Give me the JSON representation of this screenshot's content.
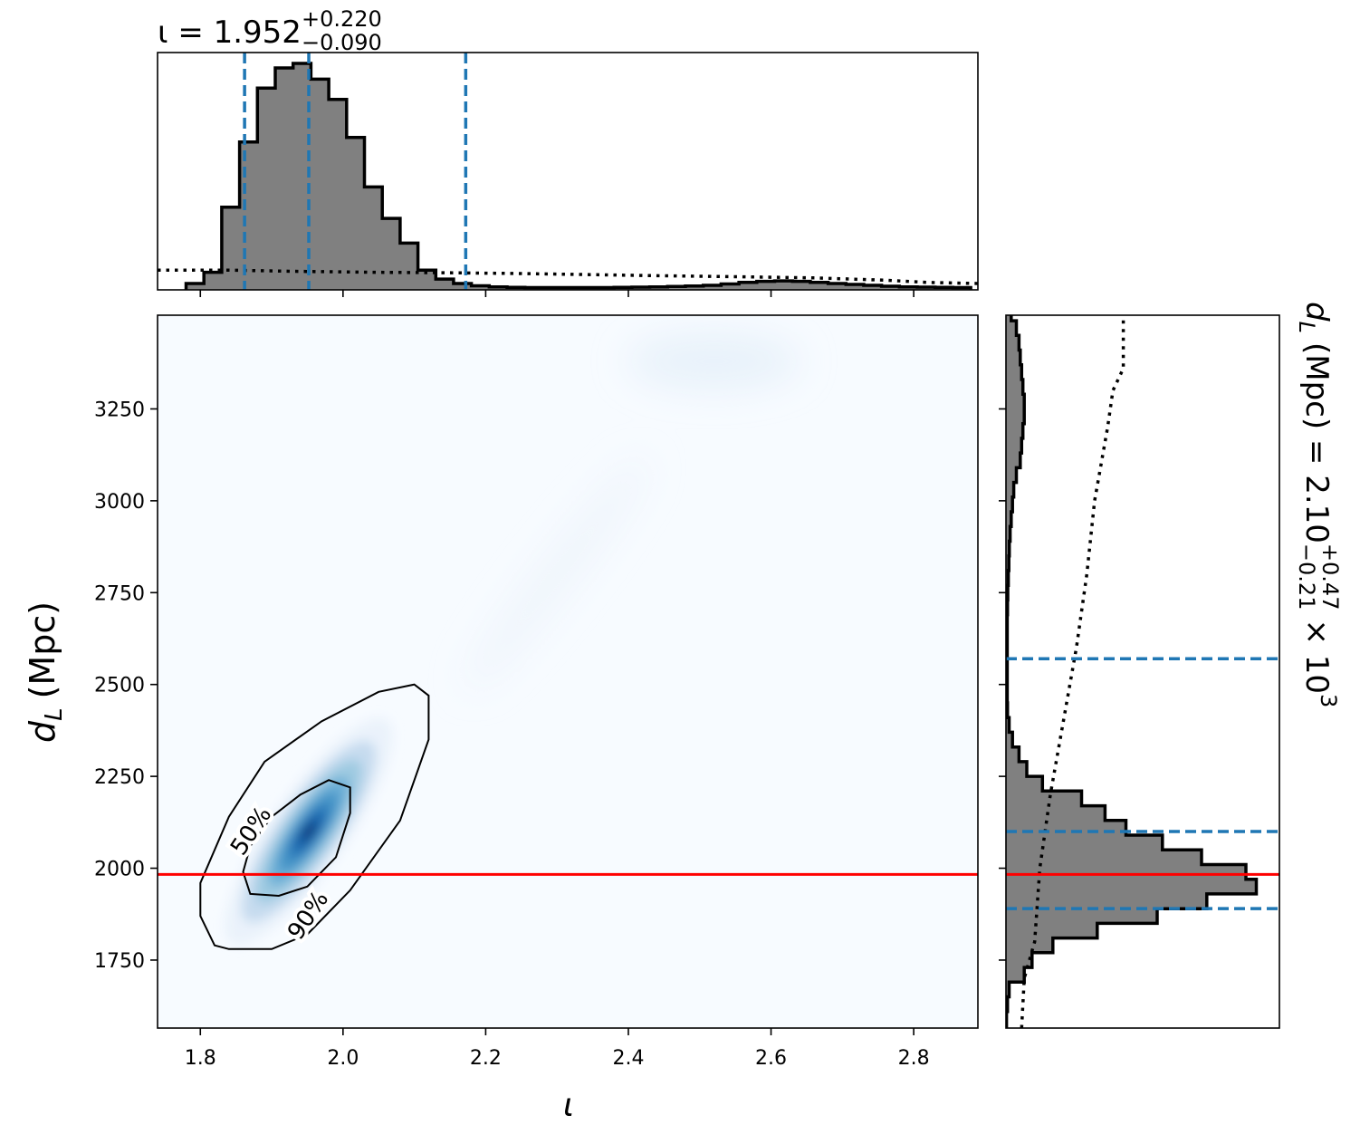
{
  "chart_data": [
    {
      "type": "heatmap",
      "panel": "joint",
      "xlabel": "ι",
      "ylabel_main": "d",
      "ylabel_sub": "L",
      "ylabel_unit": "(Mpc)",
      "xlim": [
        1.74,
        2.89
      ],
      "ylim": [
        1565,
        3505
      ],
      "x_ticks": [
        1.8,
        2.0,
        2.2,
        2.4,
        2.6,
        2.8
      ],
      "x_tick_labels": [
        "1.8",
        "2.0",
        "2.2",
        "2.4",
        "2.6",
        "2.8"
      ],
      "y_ticks": [
        1750,
        2000,
        2250,
        2500,
        2750,
        3000,
        3250
      ],
      "y_tick_labels": [
        "1750",
        "2000",
        "2250",
        "2500",
        "2750",
        "3000",
        "3250"
      ],
      "density_peak": {
        "x": 1.952,
        "y": 2100
      },
      "secondary_mode": {
        "x": 2.52,
        "y": 3380
      },
      "contours": [
        {
          "label": "50%",
          "points": [
            [
              1.87,
              1930
            ],
            [
              1.91,
              1925
            ],
            [
              1.95,
              1950
            ],
            [
              1.99,
              2030
            ],
            [
              2.01,
              2150
            ],
            [
              2.01,
              2220
            ],
            [
              1.98,
              2240
            ],
            [
              1.94,
              2200
            ],
            [
              1.9,
              2140
            ],
            [
              1.87,
              2060
            ],
            [
              1.86,
              1990
            ]
          ]
        },
        {
          "label": "90%",
          "points": [
            [
              1.82,
              1790
            ],
            [
              1.84,
              1780
            ],
            [
              1.9,
              1780
            ],
            [
              1.95,
              1820
            ],
            [
              2.01,
              1940
            ],
            [
              2.08,
              2130
            ],
            [
              2.12,
              2350
            ],
            [
              2.12,
              2470
            ],
            [
              2.1,
              2500
            ],
            [
              2.05,
              2480
            ],
            [
              1.97,
              2400
            ],
            [
              1.89,
              2290
            ],
            [
              1.84,
              2140
            ],
            [
              1.8,
              1960
            ],
            [
              1.8,
              1870
            ]
          ]
        }
      ],
      "truth_line": {
        "y": 1983,
        "color": "#ff0000"
      },
      "cmap": "Blues"
    },
    {
      "type": "bar",
      "panel": "marginal-x",
      "title_prefix": "ι = 1.952",
      "title_sup": "+0.220",
      "title_sub": "−0.090",
      "xlim": [
        1.74,
        2.89
      ],
      "bin_edges_start": 1.78,
      "bin_width": 0.025,
      "values": [
        0.02,
        0.07,
        0.36,
        0.65,
        0.89,
        0.98,
        1.0,
        0.93,
        0.84,
        0.67,
        0.45,
        0.31,
        0.2,
        0.08,
        0.04,
        0.02,
        0.01,
        0.005,
        0.003,
        0.002,
        0.002,
        0.002,
        0.002,
        0.002,
        0.003,
        0.004,
        0.005,
        0.007,
        0.009,
        0.012,
        0.018,
        0.025,
        0.03,
        0.032,
        0.03,
        0.025,
        0.02,
        0.016,
        0.012,
        0.008,
        0.005,
        0.004,
        0.003,
        0.002
      ],
      "prior_x": [
        1.74,
        1.84,
        1.92,
        2.04,
        2.14,
        2.24,
        2.34,
        2.44,
        2.56,
        2.66,
        2.76,
        2.82,
        2.89
      ],
      "prior_y": [
        0.08,
        0.08,
        0.075,
        0.07,
        0.068,
        0.065,
        0.06,
        0.055,
        0.05,
        0.045,
        0.035,
        0.025,
        0.02
      ],
      "quantile_lines": [
        1.862,
        1.952,
        2.172
      ],
      "line_color": "#1f77b4"
    },
    {
      "type": "bar",
      "panel": "marginal-y",
      "title_prefix": "d",
      "title_sub_L": "L",
      "title_middle": "(Mpc) = 2.10",
      "title_sup": "+0.47",
      "title_sub": "−0.21",
      "title_suffix": "× 10",
      "title_exp": "3",
      "ylim": [
        1565,
        3505
      ],
      "bin_edges_start": 1570,
      "bin_width": 40,
      "values": [
        0.002,
        0.006,
        0.012,
        0.07,
        0.1,
        0.18,
        0.35,
        0.58,
        0.77,
        0.96,
        0.92,
        0.75,
        0.6,
        0.46,
        0.38,
        0.29,
        0.14,
        0.08,
        0.05,
        0.025,
        0.012,
        0.006,
        0.005,
        0.005,
        0.005,
        0.005,
        0.005,
        0.005,
        0.006,
        0.007,
        0.009,
        0.011,
        0.013,
        0.016,
        0.02,
        0.025,
        0.03,
        0.04,
        0.055,
        0.06,
        0.065,
        0.07,
        0.07,
        0.065,
        0.06,
        0.055,
        0.05,
        0.04,
        0.02
      ],
      "prior_y": [
        1565,
        1700,
        1800,
        2000,
        2200,
        2400,
        2600,
        2800,
        3000,
        3200,
        3300,
        3360,
        3420,
        3500
      ],
      "prior_x": [
        0.06,
        0.07,
        0.11,
        0.13,
        0.17,
        0.22,
        0.27,
        0.31,
        0.34,
        0.39,
        0.41,
        0.45,
        0.45,
        0.45
      ],
      "quantile_lines": [
        1890,
        2100,
        2570
      ],
      "truth_line": {
        "y": 1983,
        "color": "#ff0000"
      },
      "line_color": "#1f77b4"
    }
  ]
}
